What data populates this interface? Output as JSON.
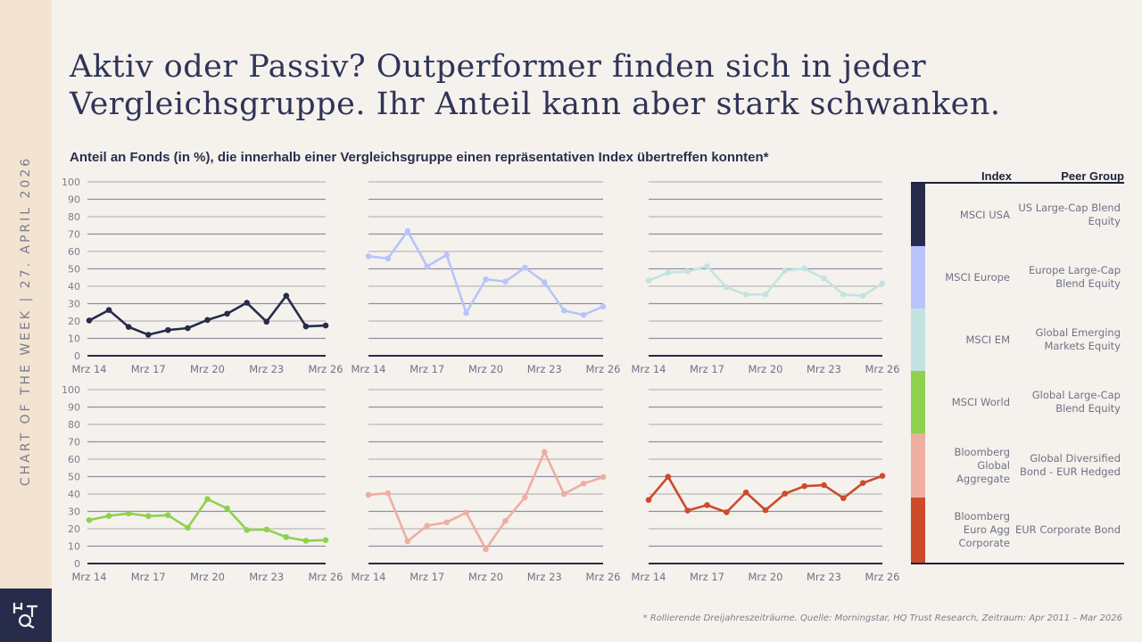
{
  "sidebar": {
    "text": "CHART OF THE WEEK | 27. APRIL 2026"
  },
  "logo": {
    "text": "HQT"
  },
  "title": {
    "line1": "Aktiv oder Passiv? Outperformer finden sich in jeder",
    "line2": "Vergleichsgruppe. Ihr Anteil kann aber stark schwanken."
  },
  "subtitle": "Anteil an Fonds (in %), die innerhalb einer Vergleichsgruppe einen repräsentativen Index übertreffen konnten*",
  "legend": {
    "index_header": "Index",
    "peer_header": "Peer Group",
    "items": [
      {
        "index": "MSCI USA",
        "peer": "US Large-Cap Blend Equity",
        "color": "#272c4b"
      },
      {
        "index": "MSCI Europe",
        "peer": "Europe Large-Cap Blend Equity",
        "color": "#b8c4fb"
      },
      {
        "index": "MSCI EM",
        "peer": "Global Emerging Markets Equity",
        "color": "#c3e3e3"
      },
      {
        "index": "MSCI World",
        "peer": "Global Large-Cap Blend Equity",
        "color": "#8fd14f"
      },
      {
        "index": "Bloomberg Global Aggregate",
        "peer": "Global Diversified Bond - EUR Hedged",
        "color": "#eeaea2"
      },
      {
        "index": "Bloomberg Euro Agg Corporate",
        "peer": "EUR Corporate Bond",
        "color": "#cd4a2b"
      }
    ]
  },
  "footer": "* Rollierende Dreijahreszeiträume. Quelle: Morningstar, HQ Trust Research, Zeitraum: Apr 2011 – Mar 2026",
  "chart_data": [
    {
      "type": "line",
      "series_ref": "MSCI USA",
      "color": "#272c4b",
      "x": [
        "Mrz 14",
        "Mrz 15",
        "Mrz 16",
        "Mrz 17",
        "Mrz 18",
        "Mrz 19",
        "Mrz 20",
        "Mrz 21",
        "Mrz 22",
        "Mrz 23",
        "Mrz 24",
        "Mrz 25",
        "Mrz 26"
      ],
      "x_tick_labels": [
        "Mrz 14",
        "Mrz 17",
        "Mrz 20",
        "Mrz 23",
        "Mrz 26"
      ],
      "values": [
        20.3,
        26.3,
        16.6,
        12.1,
        14.8,
        15.9,
        20.6,
        24.2,
        30.5,
        19.6,
        34.5,
        16.9,
        17.4
      ],
      "ylim": [
        0,
        100
      ],
      "y_ticks": [
        "0",
        "10",
        "20",
        "30",
        "40",
        "50",
        "60",
        "70",
        "80",
        "90",
        "100"
      ],
      "grid": true
    },
    {
      "type": "line",
      "series_ref": "MSCI Europe",
      "color": "#b8c4fb",
      "x": [
        "Mrz 14",
        "Mrz 15",
        "Mrz 16",
        "Mrz 17",
        "Mrz 18",
        "Mrz 19",
        "Mrz 20",
        "Mrz 21",
        "Mrz 22",
        "Mrz 23",
        "Mrz 24",
        "Mrz 25",
        "Mrz 26"
      ],
      "x_tick_labels": [
        "Mrz 14",
        "Mrz 17",
        "Mrz 20",
        "Mrz 23",
        "Mrz 26"
      ],
      "values": [
        57.2,
        56.0,
        71.7,
        51.4,
        58.0,
        24.6,
        44.0,
        42.7,
        50.7,
        42.3,
        26.0,
        23.5,
        28.3
      ],
      "ylim": [
        0,
        100
      ],
      "grid": true
    },
    {
      "type": "line",
      "series_ref": "MSCI EM",
      "color": "#c3e3e3",
      "x": [
        "Mrz 14",
        "Mrz 15",
        "Mrz 16",
        "Mrz 17",
        "Mrz 18",
        "Mrz 19",
        "Mrz 20",
        "Mrz 21",
        "Mrz 22",
        "Mrz 23",
        "Mrz 24",
        "Mrz 25",
        "Mrz 26"
      ],
      "x_tick_labels": [
        "Mrz 14",
        "Mrz 17",
        "Mrz 20",
        "Mrz 23",
        "Mrz 26"
      ],
      "values": [
        43.2,
        47.8,
        48.5,
        51.5,
        39.4,
        35.2,
        35.2,
        49.0,
        50.3,
        44.5,
        35.2,
        34.5,
        41.6
      ],
      "ylim": [
        0,
        100
      ],
      "grid": true
    },
    {
      "type": "line",
      "series_ref": "MSCI World",
      "color": "#8fd14f",
      "x": [
        "Mrz 14",
        "Mrz 15",
        "Mrz 16",
        "Mrz 17",
        "Mrz 18",
        "Mrz 19",
        "Mrz 20",
        "Mrz 21",
        "Mrz 22",
        "Mrz 23",
        "Mrz 24",
        "Mrz 25",
        "Mrz 26"
      ],
      "x_tick_labels": [
        "Mrz 14",
        "Mrz 17",
        "Mrz 20",
        "Mrz 23",
        "Mrz 26"
      ],
      "values": [
        25.0,
        27.4,
        28.8,
        27.3,
        27.8,
        20.6,
        37.1,
        31.7,
        19.3,
        19.6,
        15.2,
        13.1,
        13.5
      ],
      "ylim": [
        0,
        100
      ],
      "y_ticks": [
        "0",
        "10",
        "20",
        "30",
        "40",
        "50",
        "60",
        "70",
        "80",
        "90",
        "100"
      ],
      "grid": true
    },
    {
      "type": "line",
      "series_ref": "Bloomberg Global Aggregate",
      "color": "#eeaea2",
      "x": [
        "Mrz 14",
        "Mrz 15",
        "Mrz 16",
        "Mrz 17",
        "Mrz 18",
        "Mrz 19",
        "Mrz 20",
        "Mrz 21",
        "Mrz 22",
        "Mrz 23",
        "Mrz 24",
        "Mrz 25",
        "Mrz 26"
      ],
      "x_tick_labels": [
        "Mrz 14",
        "Mrz 17",
        "Mrz 20",
        "Mrz 23",
        "Mrz 26"
      ],
      "values": [
        39.5,
        40.4,
        12.8,
        21.8,
        23.7,
        29.3,
        8.2,
        24.5,
        38.0,
        64.2,
        40.0,
        46.0,
        49.7
      ],
      "ylim": [
        0,
        100
      ],
      "grid": true
    },
    {
      "type": "line",
      "series_ref": "Bloomberg Euro Agg Corporate",
      "color": "#cd4a2b",
      "x": [
        "Mrz 14",
        "Mrz 15",
        "Mrz 16",
        "Mrz 17",
        "Mrz 18",
        "Mrz 19",
        "Mrz 20",
        "Mrz 21",
        "Mrz 22",
        "Mrz 23",
        "Mrz 24",
        "Mrz 25",
        "Mrz 26"
      ],
      "x_tick_labels": [
        "Mrz 14",
        "Mrz 17",
        "Mrz 20",
        "Mrz 23",
        "Mrz 26"
      ],
      "values": [
        36.6,
        49.9,
        30.5,
        33.6,
        29.5,
        40.9,
        30.7,
        40.2,
        44.5,
        45.1,
        37.6,
        46.3,
        50.4
      ],
      "ylim": [
        0,
        100
      ],
      "grid": true
    }
  ]
}
